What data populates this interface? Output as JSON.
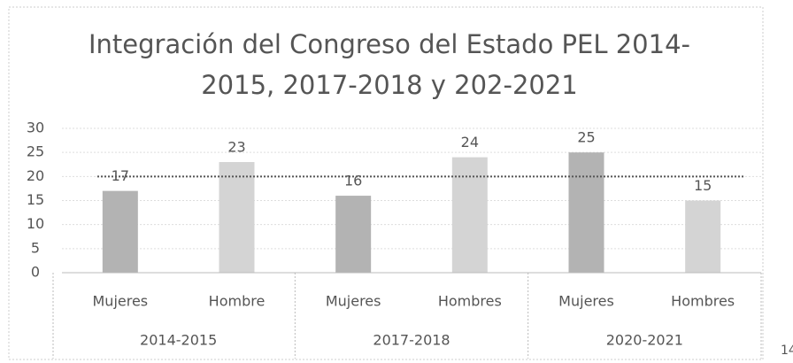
{
  "chart_data": {
    "type": "bar",
    "title_lines": [
      "Integración del Congreso del Estado PEL 2014-",
      "2015, 2017-2018 y 202-2021"
    ],
    "categories": [
      "Mujeres",
      "Hombre",
      "Mujeres",
      "Hombres",
      "Mujeres",
      "Hombres"
    ],
    "groups": [
      "2014-2015",
      "2017-2018",
      "2020-2021"
    ],
    "values": [
      17,
      23,
      16,
      24,
      25,
      15
    ],
    "colors": [
      "#b3b3b3",
      "#d4d4d4",
      "#b3b3b3",
      "#d4d4d4",
      "#b3b3b3",
      "#d4d4d4"
    ],
    "ylim": [
      0,
      30
    ],
    "yticks": [
      0,
      5,
      10,
      15,
      20,
      25,
      30
    ],
    "grid": true,
    "reference_line": 20,
    "page_number": "14"
  }
}
